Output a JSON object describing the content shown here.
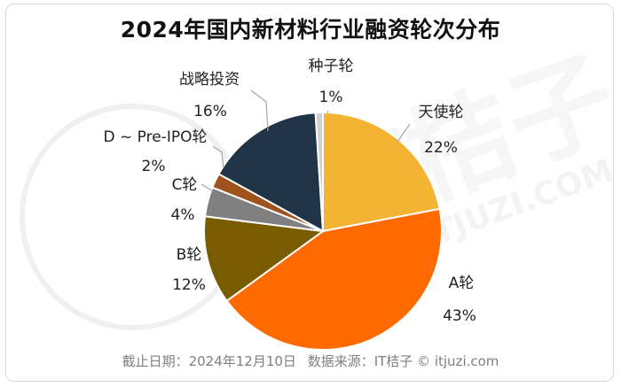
{
  "chart_data": {
    "type": "pie",
    "title": "2024年国内新材料行业融资轮次分布",
    "start_angle_deg": 0,
    "direction": "clockwise",
    "slices": [
      {
        "label": "天使轮",
        "value": 22,
        "value_label": "22%",
        "color": "#F4B333"
      },
      {
        "label": "A轮",
        "value": 43,
        "value_label": "43%",
        "color": "#FF6A00"
      },
      {
        "label": "B轮",
        "value": 12,
        "value_label": "12%",
        "color": "#7A5C00"
      },
      {
        "label": "C轮",
        "value": 4,
        "value_label": "4%",
        "color": "#808080"
      },
      {
        "label": "D ~ Pre-IPO轮",
        "value": 2,
        "value_label": "2%",
        "color": "#A0521D"
      },
      {
        "label": "战略投资",
        "value": 16,
        "value_label": "16%",
        "color": "#1F3447"
      },
      {
        "label": "种子轮",
        "value": 1,
        "value_label": "1%",
        "color": "#D0D0D0"
      }
    ]
  },
  "footer": {
    "date": "截止日期：2024年12月10日",
    "source": "数据来源：IT桔子 © itjuzi.com"
  },
  "watermark": {
    "brand": "IT桔子",
    "domain": "ITJUZI.COM"
  }
}
